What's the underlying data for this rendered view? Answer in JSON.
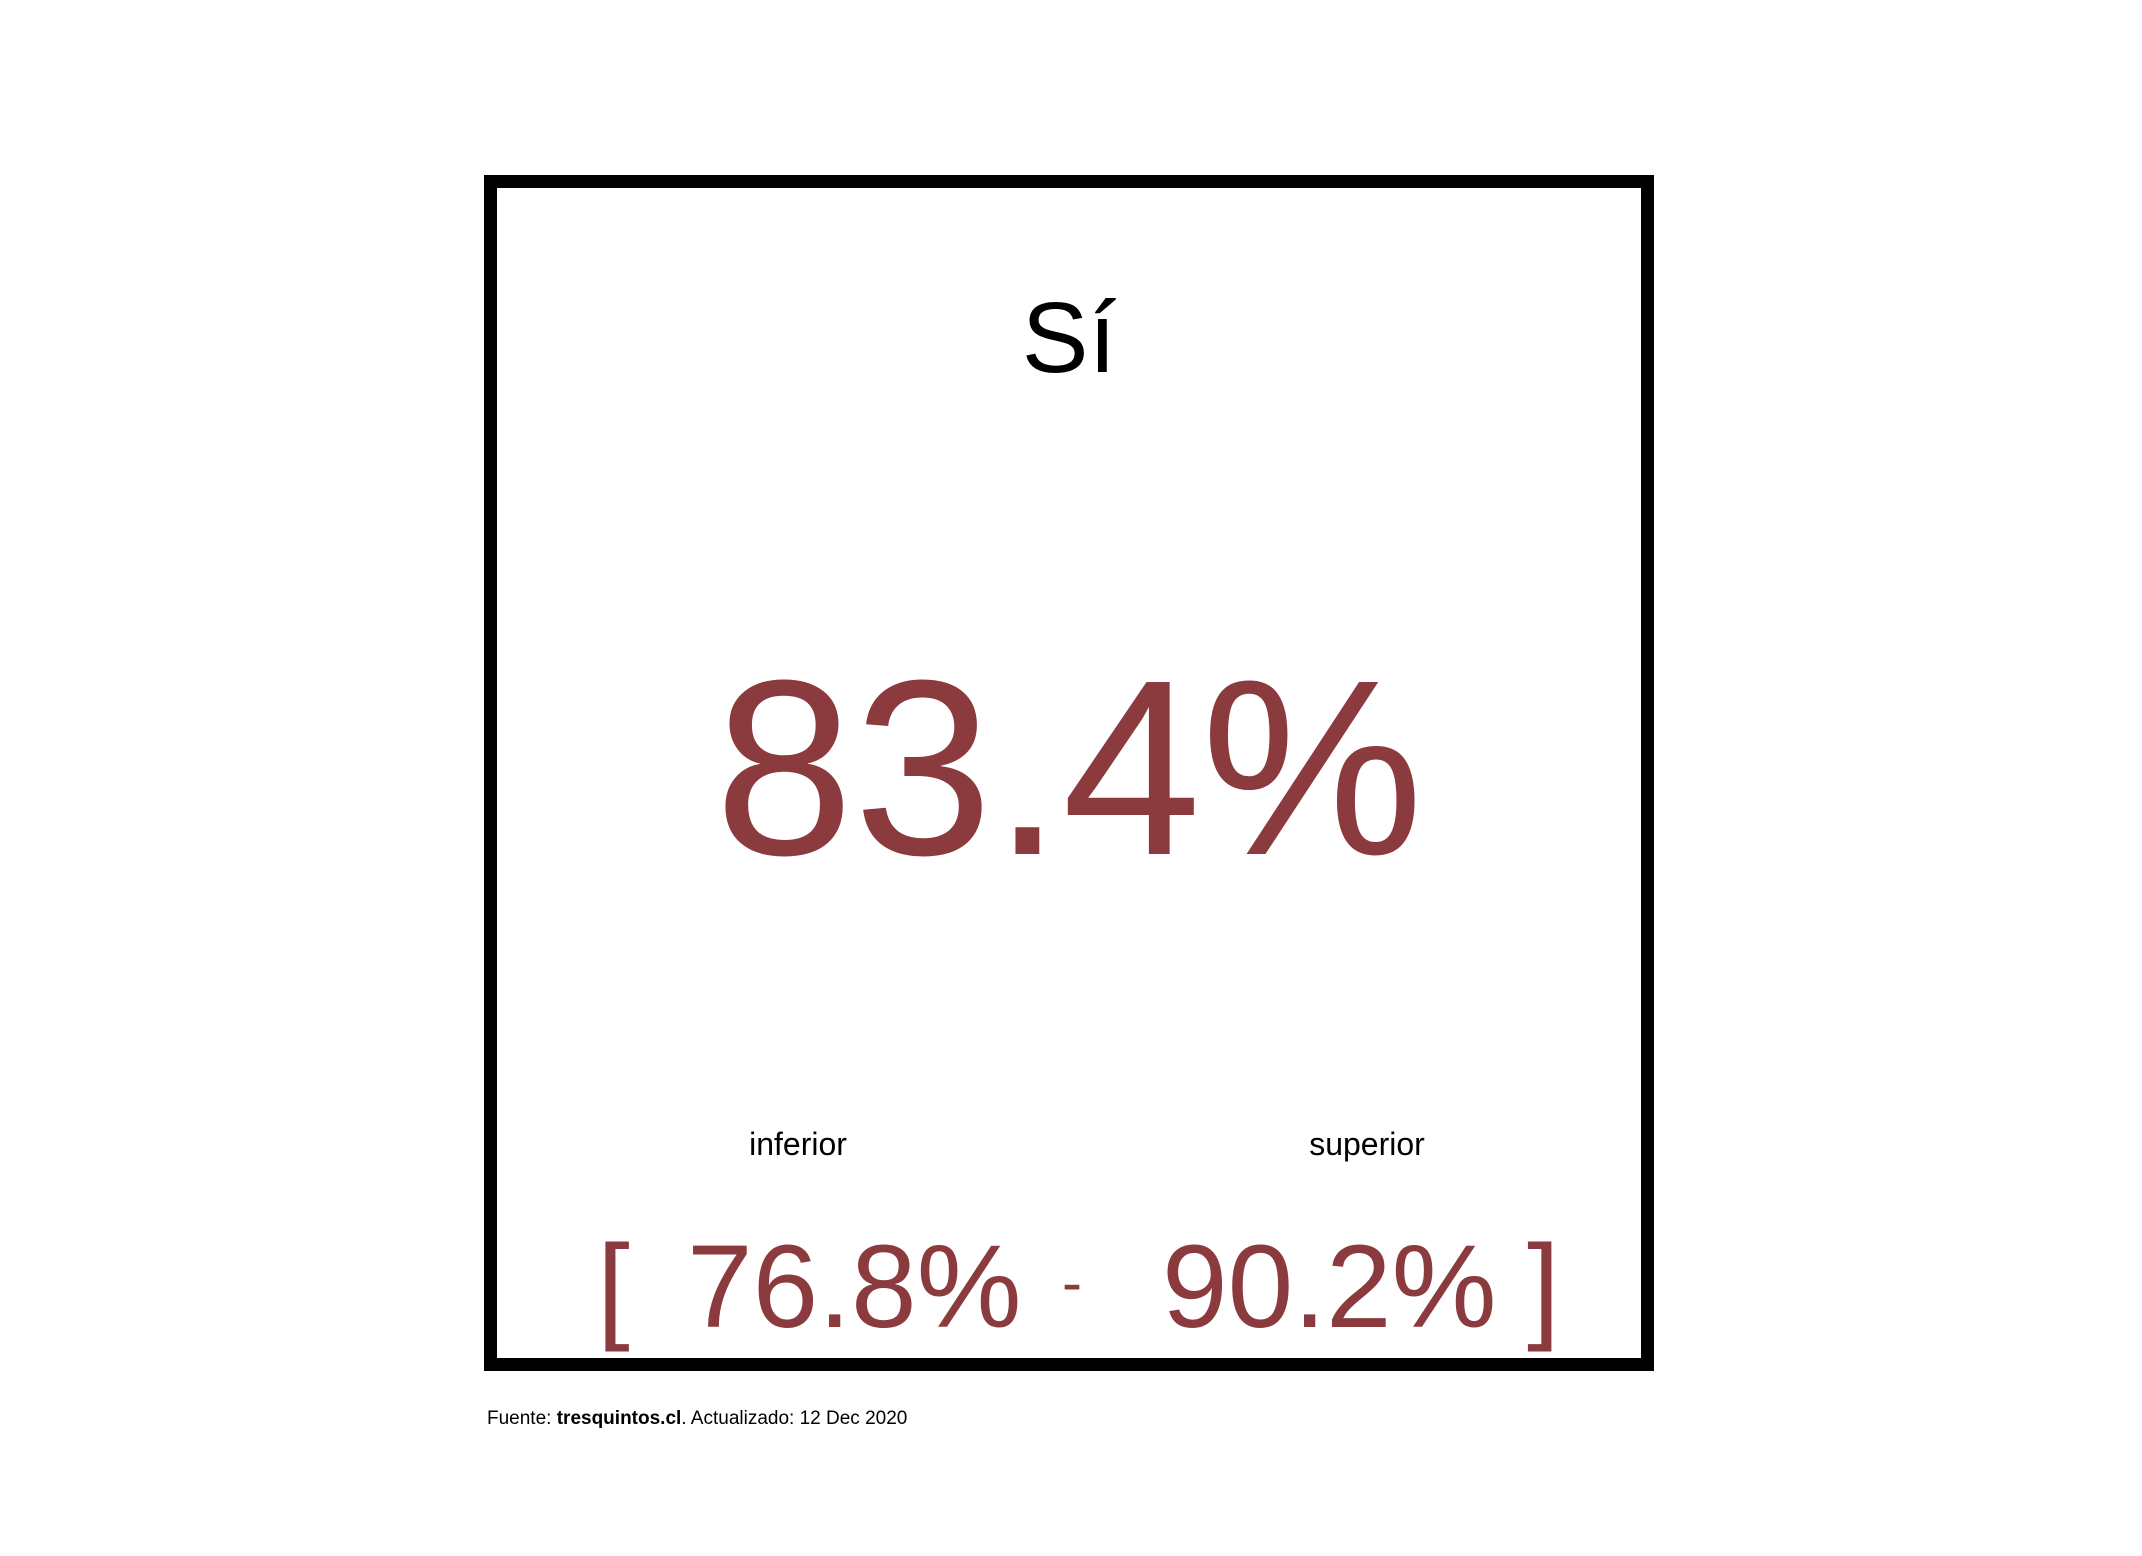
{
  "chart_data": {
    "type": "table",
    "title": "Sí",
    "value": "83.4%",
    "interval": {
      "lower_label": "inferior",
      "upper_label": "superior",
      "lower": "76.8%",
      "upper": "90.2%",
      "open_bracket": "[",
      "separator": "-",
      "close_bracket": "]"
    },
    "colors": {
      "value": "#8b3a3e",
      "text": "#000000",
      "border": "#000000"
    }
  },
  "footer": {
    "prefix": "Fuente: ",
    "source": "tresquintos.cl",
    "suffix": ". Actualizado: 12 Dec 2020"
  }
}
